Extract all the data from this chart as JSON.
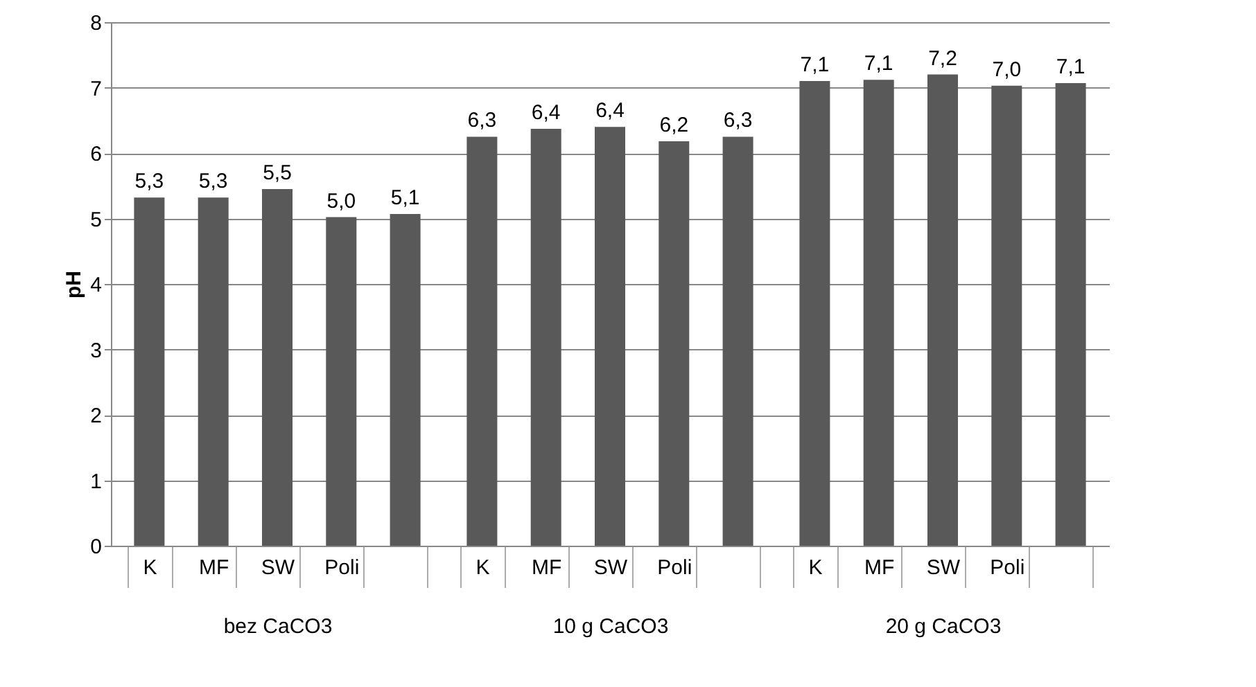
{
  "chart_data": [
    {
      "type": "bar",
      "xlabel": "bez CaCO3",
      "ylabel": "pH",
      "categories": [
        "K",
        "MF",
        "SW",
        "Poli",
        null
      ],
      "values": [
        5.32,
        5.32,
        5.45,
        5.02,
        5.07
      ],
      "value_labels": [
        "5,3",
        "5,3",
        "5,5",
        "5,0",
        "5,1"
      ],
      "color": "#595959",
      "ylim": [
        0,
        8
      ],
      "yticks": [
        0,
        1,
        2,
        3,
        4,
        5,
        6,
        7,
        8
      ],
      "grid": "y"
    },
    {
      "type": "bar",
      "xlabel": "10 g CaCO3",
      "categories": [
        "K",
        "MF",
        "SW",
        "Poli",
        null
      ],
      "values": [
        6.25,
        6.37,
        6.4,
        6.18,
        6.25
      ],
      "value_labels": [
        "6,3",
        "6,4",
        "6,4",
        "6,2",
        "6,3"
      ],
      "color": "#595959",
      "ylim": [
        0,
        8
      ],
      "yticks": [
        0,
        1,
        2,
        3,
        4,
        5,
        6,
        7,
        8
      ],
      "grid": "y",
      "tick_labels": "x"
    },
    {
      "type": "bar",
      "xlabel": "20 g CaCO3",
      "categories": [
        "K",
        "MF",
        "SW",
        "Poli",
        null
      ],
      "values": [
        7.1,
        7.12,
        7.2,
        7.03,
        7.07
      ],
      "value_labels": [
        "7,1",
        "7,1",
        "7,2",
        "7,0",
        "7,1"
      ],
      "color": "#595959",
      "ylim": [
        0,
        8
      ],
      "yticks": [
        0,
        1,
        2,
        3,
        4,
        5,
        6,
        7,
        8
      ],
      "grid": "y",
      "tick_labels": "x"
    }
  ]
}
